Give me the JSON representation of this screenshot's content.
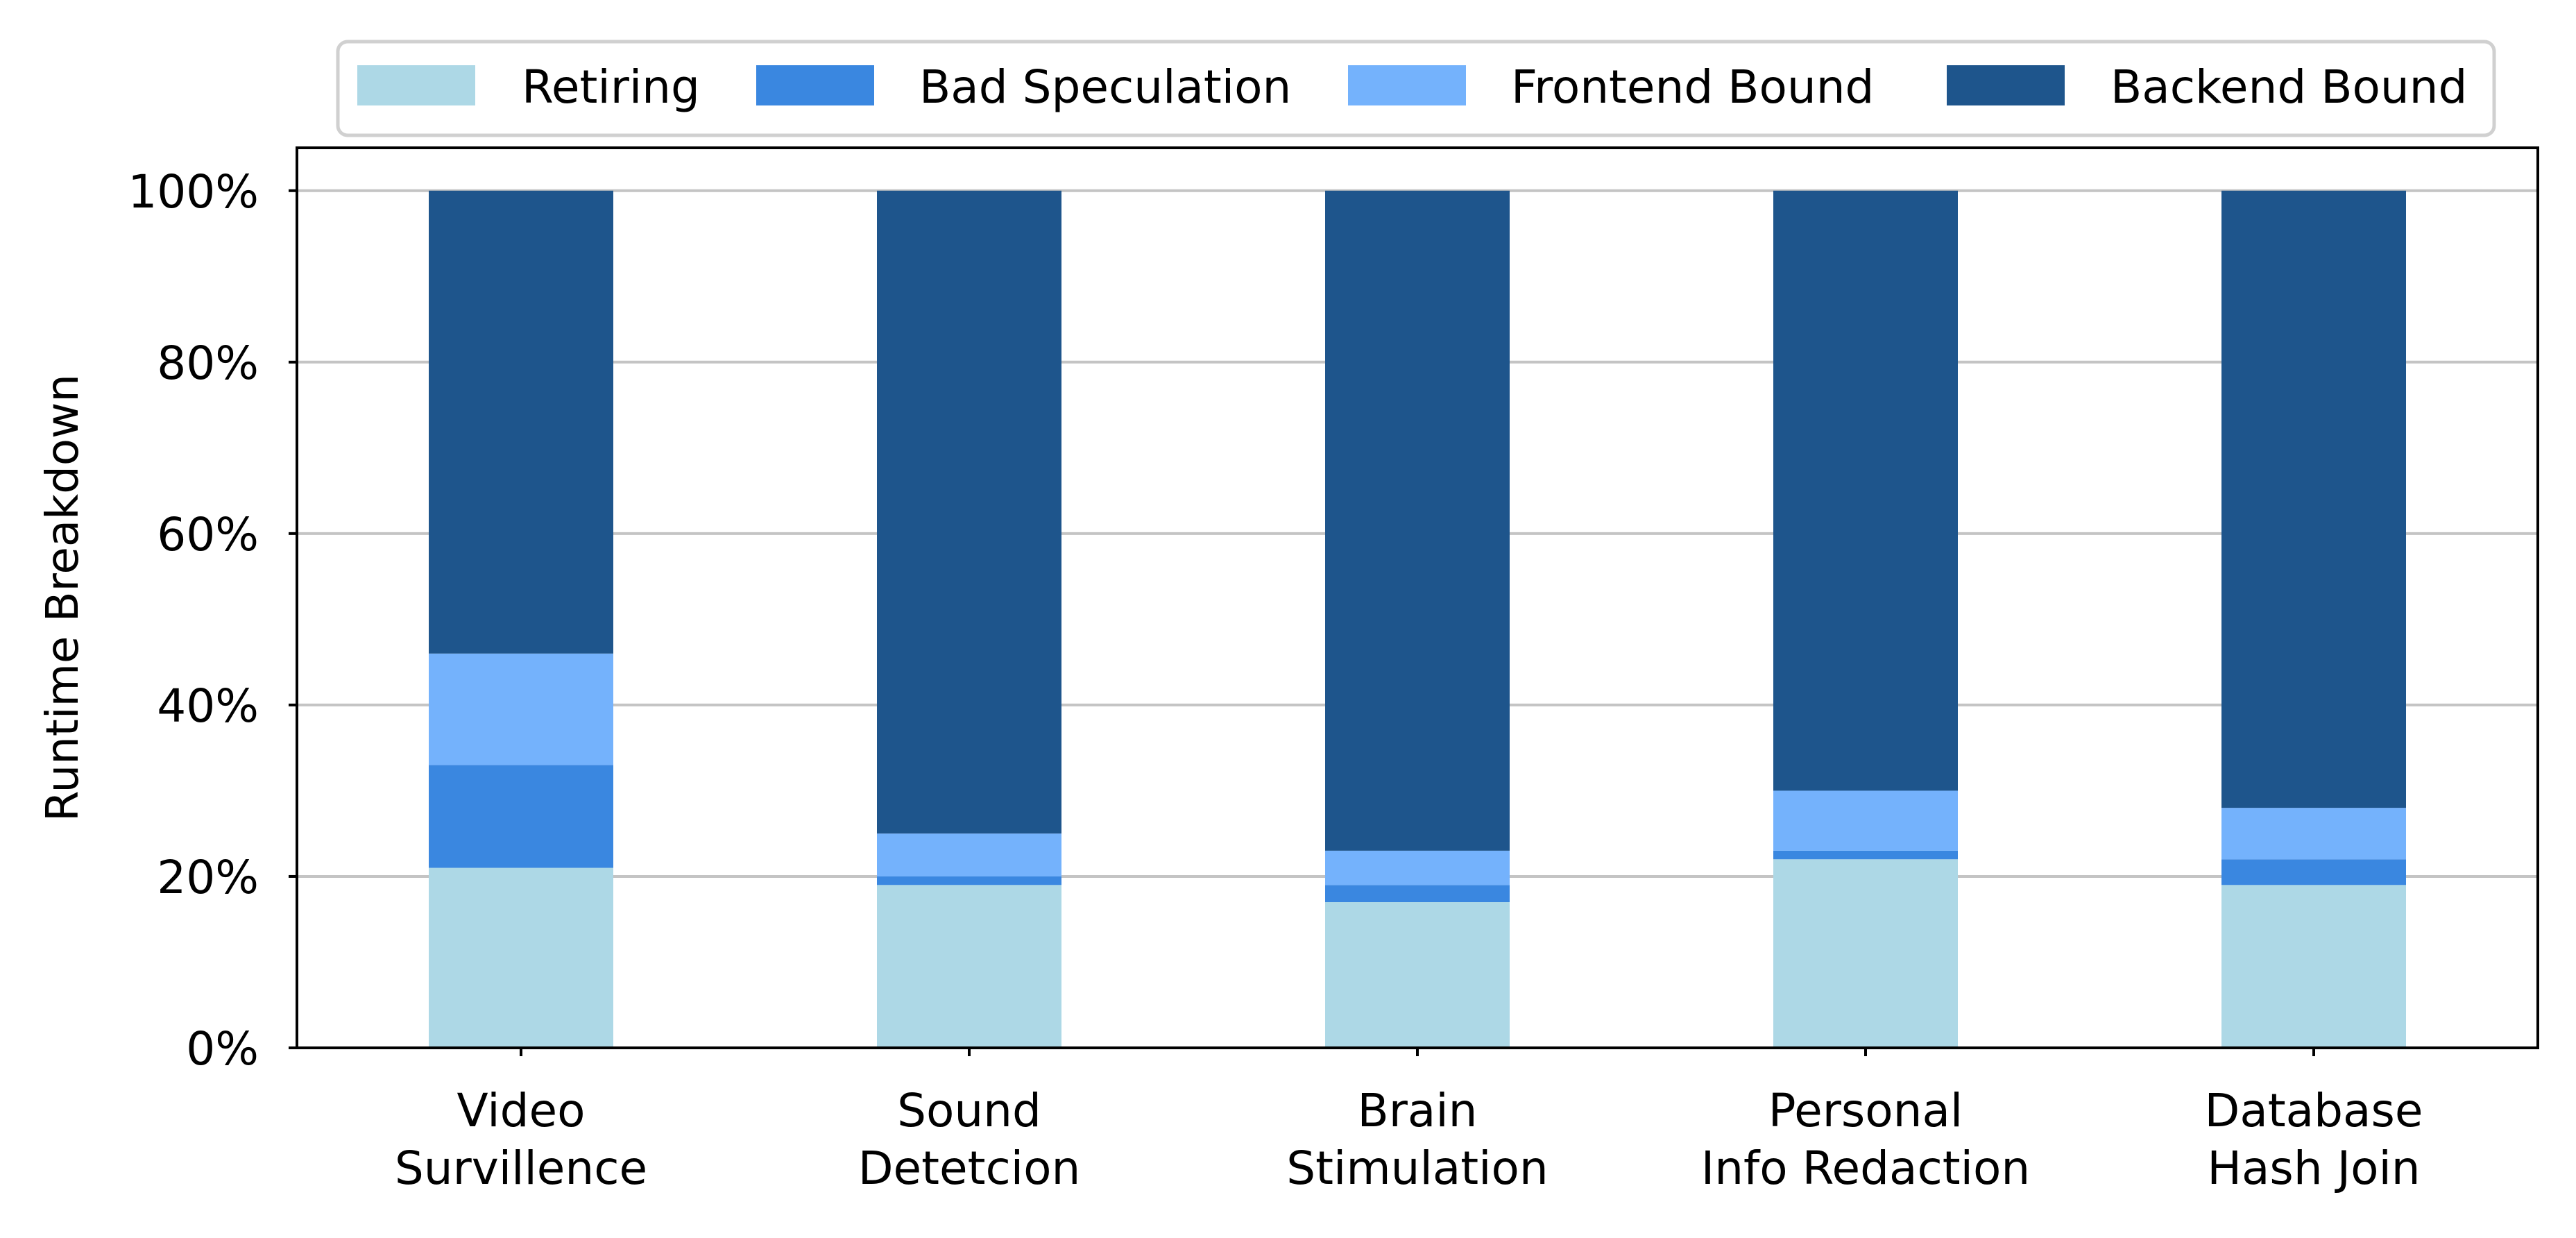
{
  "chart_data": {
    "type": "bar",
    "stacked": true,
    "categories": [
      [
        "Video",
        "Survillence"
      ],
      [
        "Sound",
        "Detetcion"
      ],
      [
        "Brain",
        "Stimulation"
      ],
      [
        "Personal",
        "Info Redaction"
      ],
      [
        "Database",
        "Hash Join"
      ]
    ],
    "series": [
      {
        "name": "Retiring",
        "color": "#add8e6",
        "values": [
          21,
          19,
          17,
          22,
          19
        ]
      },
      {
        "name": "Bad Speculation",
        "color": "#3a87e0",
        "values": [
          12,
          1,
          2,
          1,
          3
        ]
      },
      {
        "name": "Frontend Bound",
        "color": "#74b2fc",
        "values": [
          13,
          5,
          4,
          7,
          6
        ]
      },
      {
        "name": "Backend Bound",
        "color": "#1e558c",
        "values": [
          54,
          75,
          77,
          70,
          72
        ]
      }
    ],
    "title": "",
    "xlabel": "",
    "ylabel": "Runtime Breakdown",
    "ylim": [
      0,
      105
    ],
    "yticks": [
      0,
      20,
      40,
      60,
      80,
      100
    ],
    "ytick_labels": [
      "0%",
      "20%",
      "40%",
      "60%",
      "80%",
      "100%"
    ],
    "grid": "horizontal",
    "legend_position": "top-center"
  }
}
